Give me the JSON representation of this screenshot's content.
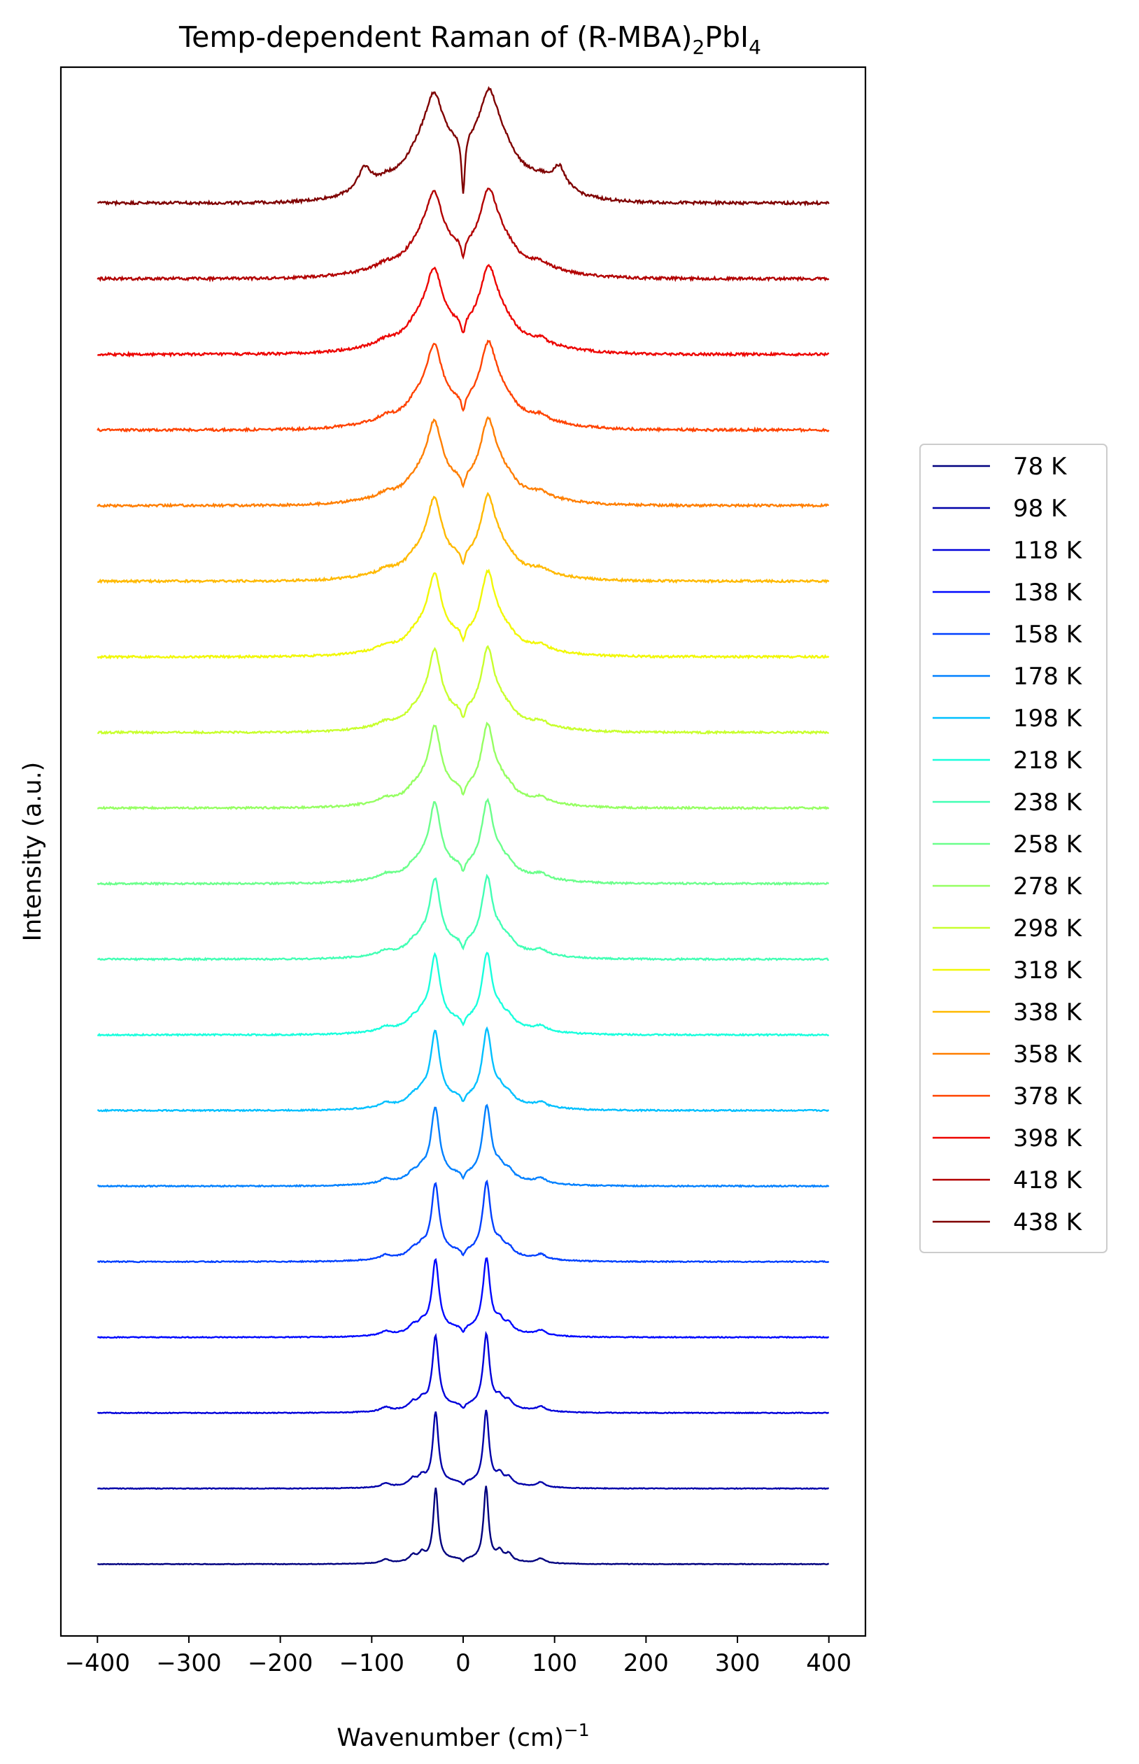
{
  "chart_data": {
    "type": "line",
    "title": "Temp-dependent Raman of (R-MBA)₂PbI₄",
    "title_parts": {
      "prefix": "Temp-dependent Raman of (R-MBA)",
      "sub1": "2",
      "mid": "PbI",
      "sub2": "4"
    },
    "xlabel": "Wavenumber (cm)⁻¹",
    "xlabel_parts": {
      "main": "Wavenumber (cm)",
      "sup": "−1"
    },
    "ylabel": "Intensity (a.u.)",
    "xlim": [
      -440,
      440
    ],
    "ylim": [
      -0.95,
      19.8
    ],
    "xticks": [
      -400,
      -300,
      -200,
      -100,
      0,
      100,
      200,
      300,
      400
    ],
    "xtick_labels": [
      "−400",
      "−300",
      "−200",
      "−100",
      "0",
      "100",
      "200",
      "300",
      "400"
    ],
    "yticks_visible": false,
    "grid": false,
    "legend_position": "right",
    "vertical_offset_per_series": 1,
    "series": [
      {
        "name": "78 K",
        "color": "#00007f"
      },
      {
        "name": "98 K",
        "color": "#0000a8"
      },
      {
        "name": "118 K",
        "color": "#0000da"
      },
      {
        "name": "138 K",
        "color": "#0008ff"
      },
      {
        "name": "158 K",
        "color": "#0040ff"
      },
      {
        "name": "178 K",
        "color": "#0080ff"
      },
      {
        "name": "198 K",
        "color": "#00c0ff"
      },
      {
        "name": "218 K",
        "color": "#18ffdd"
      },
      {
        "name": "238 K",
        "color": "#42ffb4"
      },
      {
        "name": "258 K",
        "color": "#6bff8b"
      },
      {
        "name": "278 K",
        "color": "#95ff62"
      },
      {
        "name": "298 K",
        "color": "#c8ff2e"
      },
      {
        "name": "318 K",
        "color": "#f1f805"
      },
      {
        "name": "338 K",
        "color": "#ffb900"
      },
      {
        "name": "358 K",
        "color": "#ff7e00"
      },
      {
        "name": "378 K",
        "color": "#ff4300"
      },
      {
        "name": "398 K",
        "color": "#ed0400"
      },
      {
        "name": "418 K",
        "color": "#b20000"
      },
      {
        "name": "438 K",
        "color": "#7f0000"
      }
    ]
  }
}
